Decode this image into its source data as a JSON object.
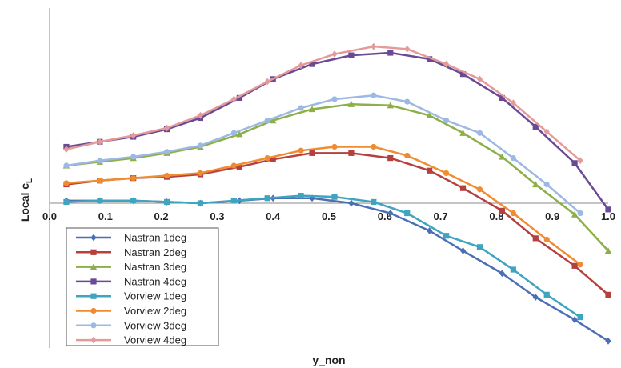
{
  "chart_data": {
    "type": "line",
    "xlabel": "y_non",
    "ylabel": "Local c",
    "ylabel_sub": "L",
    "xlim": [
      0.0,
      1.0
    ],
    "ylim": [
      -1.0,
      1.3
    ],
    "x_ticks": [
      "0.0",
      "0.1",
      "0.2",
      "0.3",
      "0.4",
      "0.5",
      "0.6",
      "0.7",
      "0.8",
      "0.9",
      "1.0"
    ],
    "grid": false,
    "legend": "bottom-left",
    "series": [
      {
        "name": "Nastran 1deg",
        "color": "#4a6fb5",
        "marker": "diamond",
        "x": [
          0.03,
          0.09,
          0.15,
          0.21,
          0.27,
          0.34,
          0.4,
          0.47,
          0.54,
          0.61,
          0.68,
          0.74,
          0.81,
          0.87,
          0.94,
          1.0
        ],
        "y": [
          0.02,
          0.02,
          0.02,
          0.01,
          0.0,
          0.02,
          0.04,
          0.04,
          0.0,
          -0.08,
          -0.22,
          -0.38,
          -0.56,
          -0.75,
          -0.93,
          -1.1
        ]
      },
      {
        "name": "Nastran 2deg",
        "color": "#b5403d",
        "marker": "square",
        "x": [
          0.03,
          0.09,
          0.15,
          0.21,
          0.27,
          0.34,
          0.4,
          0.47,
          0.54,
          0.61,
          0.68,
          0.74,
          0.81,
          0.87,
          0.94,
          1.0
        ],
        "y": [
          0.15,
          0.18,
          0.2,
          0.21,
          0.23,
          0.29,
          0.35,
          0.4,
          0.4,
          0.36,
          0.26,
          0.12,
          -0.06,
          -0.28,
          -0.5,
          -0.73
        ]
      },
      {
        "name": "Nastran 3deg",
        "color": "#8caf47",
        "marker": "triangle",
        "x": [
          0.03,
          0.09,
          0.15,
          0.21,
          0.27,
          0.34,
          0.4,
          0.47,
          0.54,
          0.61,
          0.68,
          0.74,
          0.81,
          0.87,
          0.94,
          1.0
        ],
        "y": [
          0.3,
          0.33,
          0.36,
          0.4,
          0.45,
          0.55,
          0.66,
          0.75,
          0.79,
          0.78,
          0.7,
          0.56,
          0.37,
          0.15,
          -0.09,
          -0.38
        ]
      },
      {
        "name": "Nastran 4deg",
        "color": "#6a4a94",
        "marker": "square",
        "x": [
          0.03,
          0.09,
          0.15,
          0.21,
          0.27,
          0.34,
          0.4,
          0.47,
          0.54,
          0.61,
          0.68,
          0.74,
          0.81,
          0.87,
          0.94,
          1.0
        ],
        "y": [
          0.45,
          0.49,
          0.53,
          0.59,
          0.68,
          0.84,
          0.99,
          1.11,
          1.18,
          1.2,
          1.15,
          1.03,
          0.84,
          0.61,
          0.32,
          -0.05
        ]
      },
      {
        "name": "Vorview 1deg",
        "color": "#3fa4bf",
        "marker": "square",
        "x": [
          0.03,
          0.09,
          0.15,
          0.21,
          0.27,
          0.33,
          0.39,
          0.45,
          0.51,
          0.58,
          0.64,
          0.71,
          0.77,
          0.83,
          0.89,
          0.95
        ],
        "y": [
          0.01,
          0.02,
          0.02,
          0.01,
          0.0,
          0.02,
          0.04,
          0.06,
          0.05,
          0.01,
          -0.08,
          -0.26,
          -0.35,
          -0.53,
          -0.73,
          -0.91
        ]
      },
      {
        "name": "Vorview 2deg",
        "color": "#ef8c32",
        "marker": "circle",
        "x": [
          0.03,
          0.09,
          0.15,
          0.21,
          0.27,
          0.33,
          0.39,
          0.45,
          0.51,
          0.58,
          0.64,
          0.71,
          0.77,
          0.83,
          0.89,
          0.95
        ],
        "y": [
          0.16,
          0.18,
          0.2,
          0.22,
          0.24,
          0.3,
          0.36,
          0.42,
          0.45,
          0.45,
          0.38,
          0.24,
          0.11,
          -0.08,
          -0.29,
          -0.49
        ]
      },
      {
        "name": "Vorview 3deg",
        "color": "#9cb8e3",
        "marker": "circle",
        "x": [
          0.03,
          0.09,
          0.15,
          0.21,
          0.27,
          0.33,
          0.39,
          0.45,
          0.51,
          0.58,
          0.64,
          0.71,
          0.77,
          0.83,
          0.89,
          0.95
        ],
        "y": [
          0.3,
          0.34,
          0.37,
          0.41,
          0.46,
          0.56,
          0.66,
          0.76,
          0.83,
          0.86,
          0.81,
          0.66,
          0.56,
          0.36,
          0.15,
          -0.08
        ]
      },
      {
        "name": "Vorview 4deg",
        "color": "#e59a9a",
        "marker": "diamond",
        "x": [
          0.03,
          0.09,
          0.15,
          0.21,
          0.27,
          0.33,
          0.39,
          0.45,
          0.51,
          0.58,
          0.64,
          0.71,
          0.77,
          0.83,
          0.89,
          0.95
        ],
        "y": [
          0.43,
          0.49,
          0.54,
          0.6,
          0.7,
          0.83,
          0.97,
          1.1,
          1.19,
          1.25,
          1.23,
          1.11,
          0.99,
          0.8,
          0.57,
          0.34
        ]
      }
    ]
  }
}
